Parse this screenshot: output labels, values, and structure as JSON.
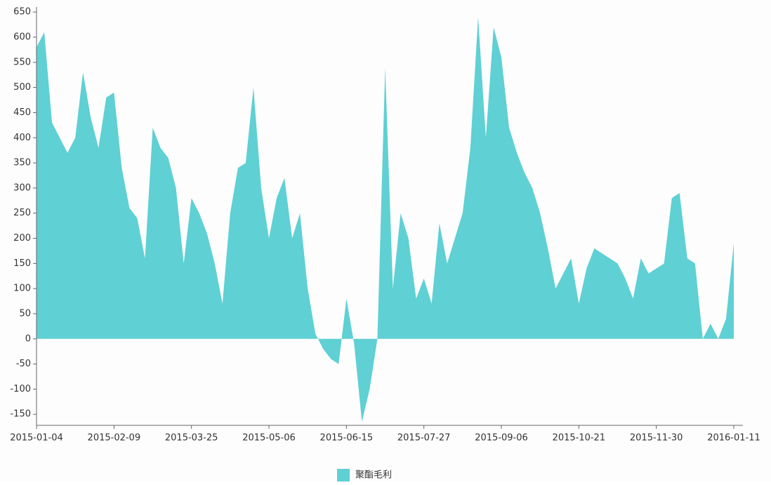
{
  "chart_data": {
    "type": "area",
    "categories": [
      "2015-01-04",
      null,
      null,
      null,
      null,
      null,
      null,
      null,
      null,
      null,
      "2015-02-09",
      null,
      null,
      null,
      null,
      null,
      null,
      null,
      null,
      null,
      "2015-03-25",
      null,
      null,
      null,
      null,
      null,
      null,
      null,
      null,
      null,
      "2015-05-06",
      null,
      null,
      null,
      null,
      null,
      null,
      null,
      null,
      null,
      "2015-06-15",
      null,
      null,
      null,
      null,
      null,
      null,
      null,
      null,
      null,
      "2015-07-27",
      null,
      null,
      null,
      null,
      null,
      null,
      null,
      null,
      null,
      "2015-09-06",
      null,
      null,
      null,
      null,
      null,
      null,
      null,
      null,
      null,
      "2015-10-21",
      null,
      null,
      null,
      null,
      null,
      null,
      null,
      null,
      null,
      "2015-11-30",
      null,
      null,
      null,
      null,
      null,
      null,
      null,
      null,
      null,
      "2016-01-11"
    ],
    "series": [
      {
        "name": "聚酯毛利",
        "color": "#5fd0d4",
        "values": [
          580,
          610,
          430,
          400,
          370,
          400,
          530,
          440,
          380,
          480,
          490,
          340,
          260,
          240,
          160,
          420,
          380,
          360,
          300,
          150,
          280,
          250,
          210,
          150,
          70,
          250,
          340,
          350,
          500,
          300,
          200,
          280,
          320,
          200,
          250,
          100,
          10,
          -20,
          -40,
          -50,
          80,
          -10,
          -165,
          -100,
          0,
          540,
          100,
          250,
          200,
          80,
          120,
          70,
          230,
          150,
          200,
          250,
          380,
          640,
          400,
          620,
          560,
          420,
          370,
          330,
          300,
          250,
          180,
          100,
          130,
          160,
          70,
          140,
          180,
          170,
          160,
          150,
          120,
          80,
          160,
          130,
          140,
          150,
          280,
          290,
          160,
          150,
          0,
          30,
          0,
          40,
          190
        ]
      }
    ],
    "ylim": [
      -172,
      660
    ],
    "yticks": [
      -150,
      -100,
      -50,
      0,
      50,
      100,
      150,
      200,
      250,
      300,
      350,
      400,
      450,
      500,
      550,
      600,
      650
    ],
    "legend": "bottom"
  }
}
